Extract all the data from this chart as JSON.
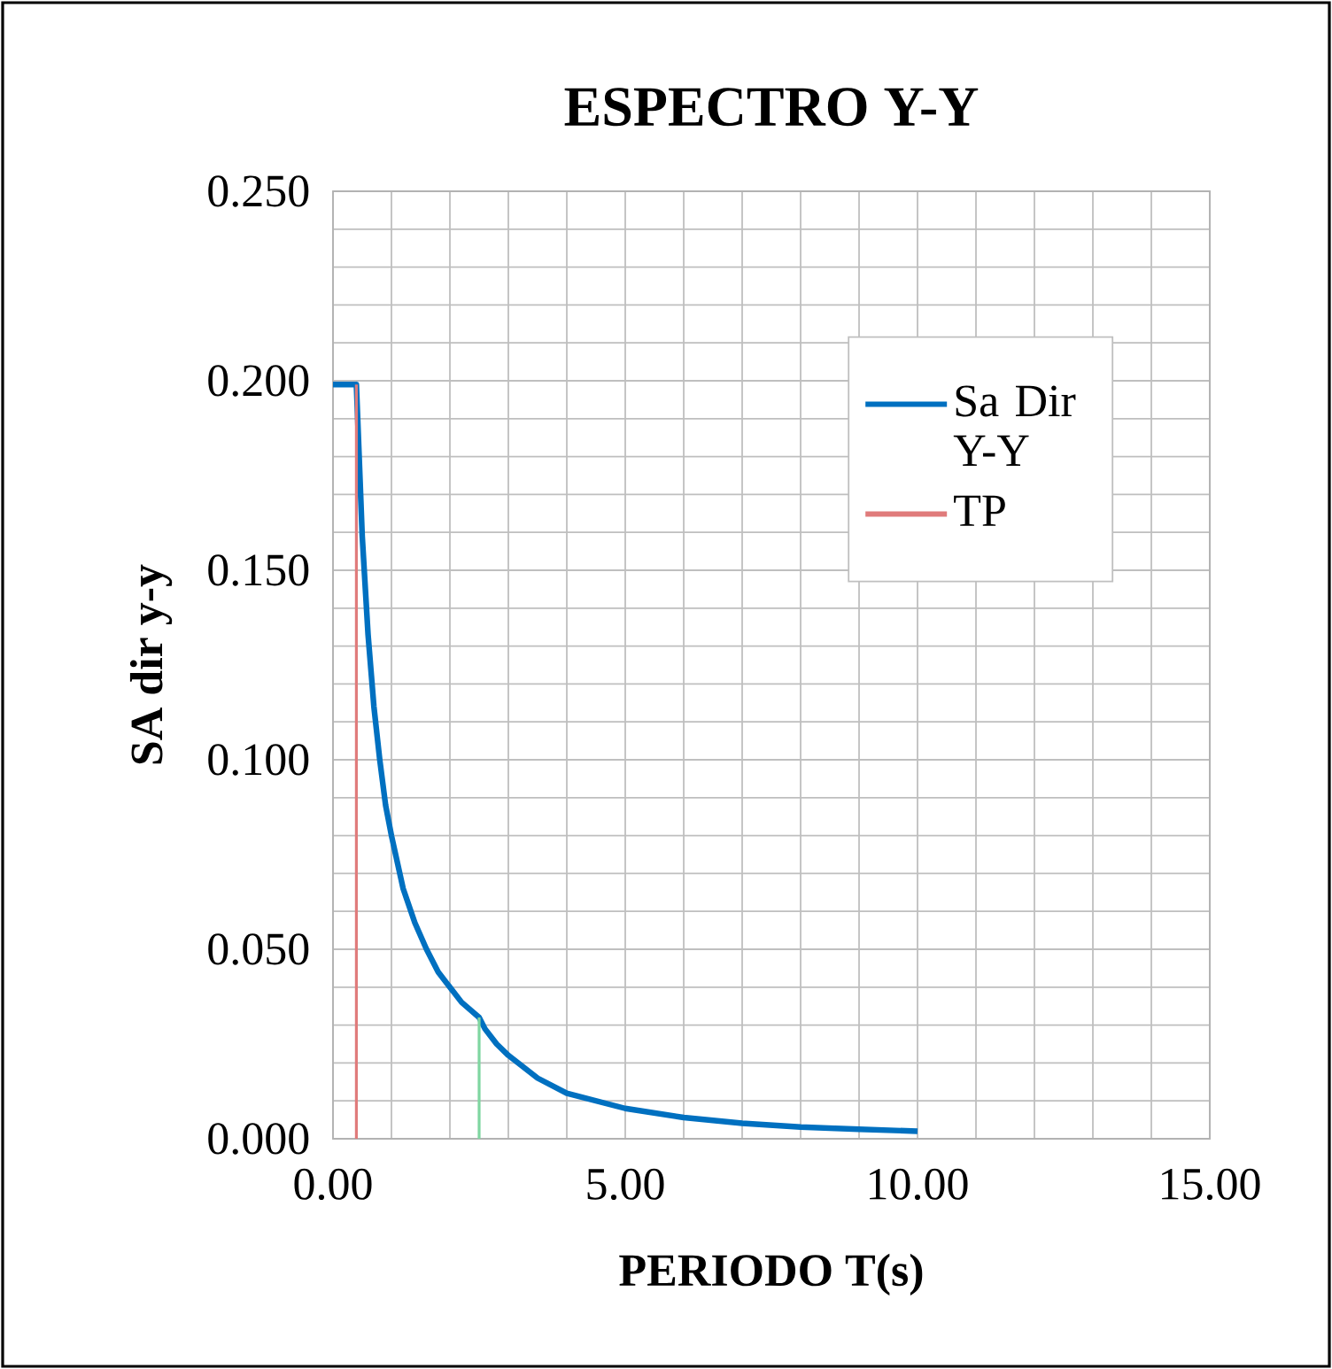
{
  "chart_data": {
    "type": "line",
    "title": "ESPECTRO Y-Y",
    "xlabel": "PERIODO T(s)",
    "ylabel": "SA dir y-y",
    "xlim": [
      0,
      15
    ],
    "ylim": [
      0,
      0.25
    ],
    "xticks": [
      {
        "value": 0,
        "label": "0.00"
      },
      {
        "value": 5,
        "label": "5.00"
      },
      {
        "value": 10,
        "label": "10.00"
      },
      {
        "value": 15,
        "label": "15.00"
      }
    ],
    "yticks": [
      {
        "value": 0,
        "label": "0.000"
      },
      {
        "value": 0.05,
        "label": "0.050"
      },
      {
        "value": 0.1,
        "label": "0.100"
      },
      {
        "value": 0.15,
        "label": "0.150"
      },
      {
        "value": 0.2,
        "label": "0.200"
      },
      {
        "value": 0.25,
        "label": "0.250"
      }
    ],
    "grid": true,
    "legend": "top right",
    "series": [
      {
        "name": "Sa Dir Y-Y",
        "color": "#0070c0",
        "x": [
          0,
          0.4,
          0.5,
          0.6,
          0.7,
          0.8,
          0.9,
          1.0,
          1.2,
          1.4,
          1.6,
          1.8,
          2.0,
          2.2,
          2.5,
          2.6,
          2.8,
          3.0,
          3.5,
          4,
          5,
          6,
          7,
          8,
          9,
          10
        ],
        "values": [
          0.199,
          0.199,
          0.159,
          0.133,
          0.114,
          0.1,
          0.088,
          0.08,
          0.066,
          0.057,
          0.05,
          0.044,
          0.04,
          0.036,
          0.032,
          0.029,
          0.025,
          0.022,
          0.016,
          0.012,
          0.008,
          0.0056,
          0.0041,
          0.0031,
          0.0025,
          0.002
        ]
      },
      {
        "name": "TP",
        "color": "#e07b7b",
        "x": [
          0.4,
          0.4
        ],
        "values": [
          0,
          0.199
        ]
      },
      {
        "color": "#7fd6a0",
        "x": [
          2.5,
          2.5
        ],
        "values": [
          0,
          0.032
        ]
      }
    ]
  }
}
